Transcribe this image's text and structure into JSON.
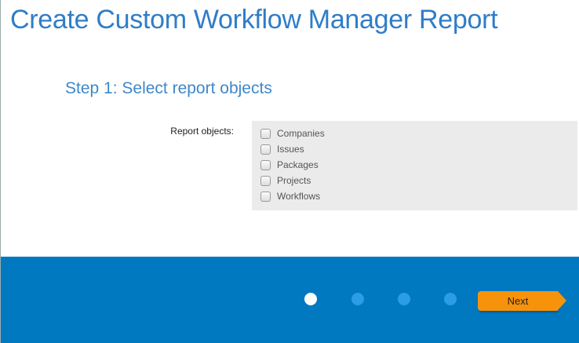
{
  "page": {
    "title": "Create Custom Workflow Manager Report"
  },
  "step": {
    "title": "Step 1: Select report objects"
  },
  "form": {
    "label": "Report objects:",
    "options": [
      {
        "label": "Companies",
        "checked": false
      },
      {
        "label": "Issues",
        "checked": false
      },
      {
        "label": "Packages",
        "checked": false
      },
      {
        "label": "Projects",
        "checked": false
      },
      {
        "label": "Workflows",
        "checked": false
      }
    ]
  },
  "wizard": {
    "total_steps": 4,
    "current_step": 1,
    "next_label": "Next"
  },
  "colors": {
    "footer": "#0079c1",
    "next_button": "#f7930b",
    "title": "#2f7dc8"
  }
}
